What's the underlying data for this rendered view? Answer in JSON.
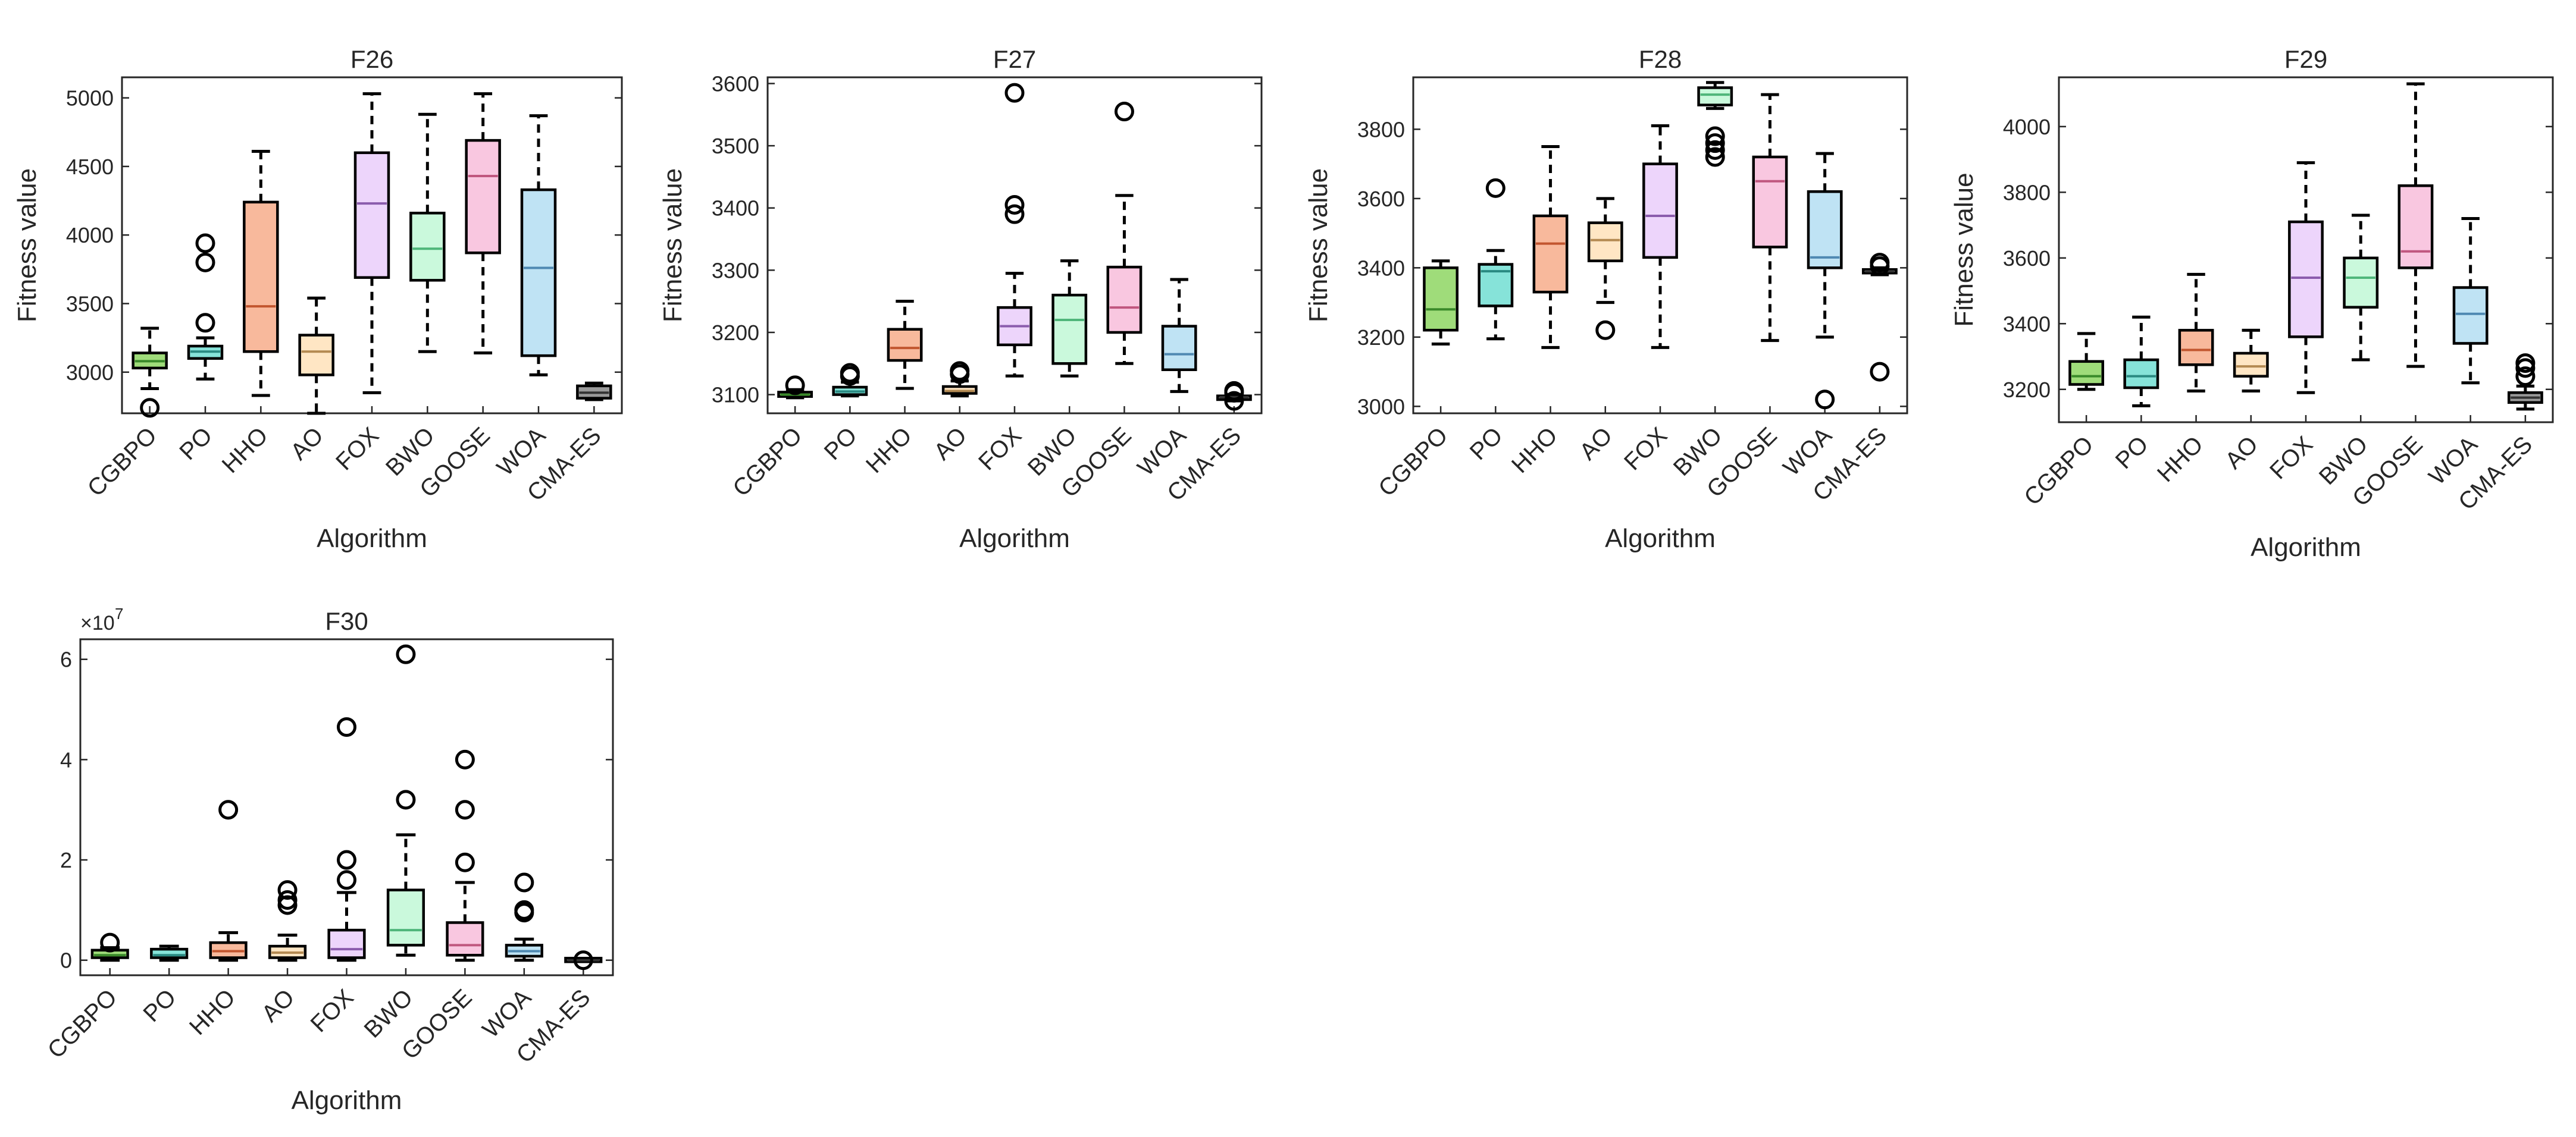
{
  "chart_data": [
    {
      "type": "box",
      "title": "F26",
      "xlabel": "Algorithm",
      "ylabel": "Fitness value",
      "ylabel_display": "Fitness value",
      "ylim": [
        2700,
        5150
      ],
      "yticks": [
        3000,
        3500,
        4000,
        4500,
        5000
      ],
      "ytick_labels": [
        "3000",
        "3500",
        "4000",
        "4500",
        "5000"
      ],
      "categories": [
        "CGBPO",
        "PO",
        "HHO",
        "AO",
        "FOX",
        "BWO",
        "GOOSE",
        "WOA",
        "CMA-ES"
      ],
      "boxes": [
        {
          "min": 2880,
          "q1": 3030,
          "median": 3080,
          "q3": 3140,
          "max": 3320,
          "outliers": [
            2740
          ]
        },
        {
          "min": 2950,
          "q1": 3100,
          "median": 3150,
          "q3": 3190,
          "max": 3250,
          "outliers": [
            3360,
            3800,
            3940
          ]
        },
        {
          "min": 2830,
          "q1": 3150,
          "median": 3480,
          "q3": 4240,
          "max": 4610,
          "outliers": []
        },
        {
          "min": 2700,
          "q1": 2980,
          "median": 3150,
          "q3": 3270,
          "max": 3540,
          "outliers": []
        },
        {
          "min": 2850,
          "q1": 3690,
          "median": 4230,
          "q3": 4600,
          "max": 5030,
          "outliers": []
        },
        {
          "min": 3150,
          "q1": 3670,
          "median": 3900,
          "q3": 4160,
          "max": 4880,
          "outliers": []
        },
        {
          "min": 3140,
          "q1": 3870,
          "median": 4430,
          "q3": 4690,
          "max": 5030,
          "outliers": []
        },
        {
          "min": 2980,
          "q1": 3120,
          "median": 3760,
          "q3": 4330,
          "max": 4870,
          "outliers": []
        },
        {
          "min": 2800,
          "q1": 2810,
          "median": 2850,
          "q3": 2900,
          "max": 2920,
          "outliers": []
        }
      ]
    },
    {
      "type": "box",
      "title": "F27",
      "xlabel": "Algorithm",
      "ylabel": "Fitness value",
      "ylabel_display": "Fitness value",
      "ylim": [
        3070,
        3610
      ],
      "yticks": [
        3100,
        3200,
        3300,
        3400,
        3500,
        3600
      ],
      "ytick_labels": [
        "3100",
        "3200",
        "3300",
        "3400",
        "3500",
        "3600"
      ],
      "categories": [
        "CGBPO",
        "PO",
        "HHO",
        "AO",
        "FOX",
        "BWO",
        "GOOSE",
        "WOA",
        "CMA-ES"
      ],
      "boxes": [
        {
          "min": 3095,
          "q1": 3097,
          "median": 3100,
          "q3": 3104,
          "max": 3108,
          "outliers": [
            3115
          ]
        },
        {
          "min": 3098,
          "q1": 3100,
          "median": 3105,
          "q3": 3112,
          "max": 3120,
          "outliers": [
            3130,
            3135
          ]
        },
        {
          "min": 3110,
          "q1": 3155,
          "median": 3175,
          "q3": 3205,
          "max": 3250,
          "outliers": []
        },
        {
          "min": 3098,
          "q1": 3102,
          "median": 3106,
          "q3": 3113,
          "max": 3122,
          "outliers": [
            3133,
            3138
          ]
        },
        {
          "min": 3130,
          "q1": 3180,
          "median": 3210,
          "q3": 3240,
          "max": 3295,
          "outliers": [
            3390,
            3405,
            3585
          ]
        },
        {
          "min": 3130,
          "q1": 3150,
          "median": 3220,
          "q3": 3260,
          "max": 3315,
          "outliers": []
        },
        {
          "min": 3150,
          "q1": 3200,
          "median": 3240,
          "q3": 3305,
          "max": 3420,
          "outliers": [
            3555
          ]
        },
        {
          "min": 3105,
          "q1": 3140,
          "median": 3165,
          "q3": 3210,
          "max": 3285,
          "outliers": []
        },
        {
          "min": 3090,
          "q1": 3092,
          "median": 3096,
          "q3": 3098,
          "max": 3100,
          "outliers": [
            3090,
            3103,
            3106
          ]
        }
      ]
    },
    {
      "type": "box",
      "title": "F28",
      "xlabel": "Algorithm",
      "ylabel": "Fitness value",
      "ylabel_display": "Fitness value",
      "ylim": [
        2980,
        3950
      ],
      "yticks": [
        3000,
        3200,
        3400,
        3600,
        3800
      ],
      "ytick_labels": [
        "3000",
        "3200",
        "3400",
        "3600",
        "3800"
      ],
      "categories": [
        "CGBPO",
        "PO",
        "HHO",
        "AO",
        "FOX",
        "BWO",
        "GOOSE",
        "WOA",
        "CMA-ES"
      ],
      "boxes": [
        {
          "min": 3180,
          "q1": 3220,
          "median": 3280,
          "q3": 3400,
          "max": 3420,
          "outliers": []
        },
        {
          "min": 3195,
          "q1": 3290,
          "median": 3390,
          "q3": 3410,
          "max": 3450,
          "outliers": [
            3630
          ]
        },
        {
          "min": 3170,
          "q1": 3330,
          "median": 3470,
          "q3": 3550,
          "max": 3750,
          "outliers": []
        },
        {
          "min": 3300,
          "q1": 3420,
          "median": 3480,
          "q3": 3530,
          "max": 3600,
          "outliers": [
            3220
          ]
        },
        {
          "min": 3170,
          "q1": 3430,
          "median": 3550,
          "q3": 3700,
          "max": 3810,
          "outliers": []
        },
        {
          "min": 3860,
          "q1": 3870,
          "median": 3900,
          "q3": 3920,
          "max": 3935,
          "outliers": [
            3720,
            3740,
            3760,
            3780
          ]
        },
        {
          "min": 3190,
          "q1": 3460,
          "median": 3650,
          "q3": 3720,
          "max": 3900,
          "outliers": []
        },
        {
          "min": 3200,
          "q1": 3400,
          "median": 3430,
          "q3": 3620,
          "max": 3730,
          "outliers": [
            3020
          ]
        },
        {
          "min": 3380,
          "q1": 3385,
          "median": 3390,
          "q3": 3395,
          "max": 3400,
          "outliers": [
            3100,
            3405,
            3415
          ]
        }
      ]
    },
    {
      "type": "box",
      "title": "F29",
      "xlabel": "Algorithm",
      "ylabel": "Fitness value",
      "ylabel_display": "Fitness value",
      "ylim": [
        3100,
        4150
      ],
      "yticks": [
        3200,
        3400,
        3600,
        3800,
        4000
      ],
      "ytick_labels": [
        "3200",
        "3400",
        "3600",
        "3800",
        "4000"
      ],
      "categories": [
        "CGBPO",
        "PO",
        "HHO",
        "AO",
        "FOX",
        "BWO",
        "GOOSE",
        "WOA",
        "CMA-ES"
      ],
      "boxes": [
        {
          "min": 3200,
          "q1": 3215,
          "median": 3240,
          "q3": 3285,
          "max": 3370,
          "outliers": []
        },
        {
          "min": 3150,
          "q1": 3205,
          "median": 3240,
          "q3": 3290,
          "max": 3420,
          "outliers": []
        },
        {
          "min": 3195,
          "q1": 3275,
          "median": 3320,
          "q3": 3380,
          "max": 3550,
          "outliers": []
        },
        {
          "min": 3195,
          "q1": 3240,
          "median": 3270,
          "q3": 3310,
          "max": 3380,
          "outliers": []
        },
        {
          "min": 3190,
          "q1": 3360,
          "median": 3540,
          "q3": 3710,
          "max": 3890,
          "outliers": []
        },
        {
          "min": 3290,
          "q1": 3450,
          "median": 3540,
          "q3": 3600,
          "max": 3730,
          "outliers": []
        },
        {
          "min": 3270,
          "q1": 3570,
          "median": 3620,
          "q3": 3820,
          "max": 4130,
          "outliers": []
        },
        {
          "min": 3220,
          "q1": 3340,
          "median": 3430,
          "q3": 3510,
          "max": 3720,
          "outliers": []
        },
        {
          "min": 3140,
          "q1": 3160,
          "median": 3175,
          "q3": 3190,
          "max": 3210,
          "outliers": [
            3240,
            3265,
            3280
          ]
        }
      ]
    },
    {
      "type": "box",
      "title": "F30",
      "xlabel": "Algorithm",
      "ylabel": "Fitness value",
      "ylabel_display": "Fitness value",
      "y_multiplier": "×10",
      "y_multiplier_exp": "7",
      "ylim": [
        -0.3,
        6.4
      ],
      "yticks": [
        0,
        2,
        4,
        6
      ],
      "ytick_labels": [
        "0",
        "2",
        "4",
        "6"
      ],
      "categories": [
        "CGBPO",
        "PO",
        "HHO",
        "AO",
        "FOX",
        "BWO",
        "GOOSE",
        "WOA",
        "CMA-ES"
      ],
      "boxes": [
        {
          "min": 0.0,
          "q1": 0.05,
          "median": 0.1,
          "q3": 0.2,
          "max": 0.25,
          "outliers": [
            0.35
          ]
        },
        {
          "min": 0.0,
          "q1": 0.05,
          "median": 0.1,
          "q3": 0.22,
          "max": 0.28,
          "outliers": []
        },
        {
          "min": 0.0,
          "q1": 0.05,
          "median": 0.18,
          "q3": 0.35,
          "max": 0.55,
          "outliers": [
            3.0
          ]
        },
        {
          "min": 0.0,
          "q1": 0.05,
          "median": 0.15,
          "q3": 0.28,
          "max": 0.5,
          "outliers": [
            1.1,
            1.2,
            1.4
          ]
        },
        {
          "min": 0.0,
          "q1": 0.05,
          "median": 0.22,
          "q3": 0.6,
          "max": 1.35,
          "outliers": [
            1.6,
            2.0,
            4.65
          ]
        },
        {
          "min": 0.1,
          "q1": 0.3,
          "median": 0.6,
          "q3": 1.4,
          "max": 2.5,
          "outliers": [
            3.2,
            6.1
          ]
        },
        {
          "min": 0.0,
          "q1": 0.1,
          "median": 0.3,
          "q3": 0.75,
          "max": 1.55,
          "outliers": [
            1.95,
            3.0,
            4.0
          ]
        },
        {
          "min": 0.0,
          "q1": 0.08,
          "median": 0.18,
          "q3": 0.3,
          "max": 0.42,
          "outliers": [
            0.95,
            1.0,
            1.55
          ]
        },
        {
          "min": 0.0,
          "q1": 0.0,
          "median": 0.0,
          "q3": 0.01,
          "max": 0.02,
          "outliers": [
            0.0
          ]
        }
      ]
    }
  ],
  "colors": {
    "box_fills": [
      "#9fdc7a",
      "#86e3d9",
      "#f8b99c",
      "#ffe6c4",
      "#edd5fb",
      "#caf9dc",
      "#f9c7e0",
      "#bfe3f4",
      "#9a9a9a"
    ],
    "median_lines": [
      "#3a8a2a",
      "#2a8a82",
      "#c2562f",
      "#b48a52",
      "#8b5cad",
      "#4fb67a",
      "#c0577f",
      "#4f89b2",
      "#333333"
    ],
    "axis": "#262626",
    "text": "#262626"
  }
}
